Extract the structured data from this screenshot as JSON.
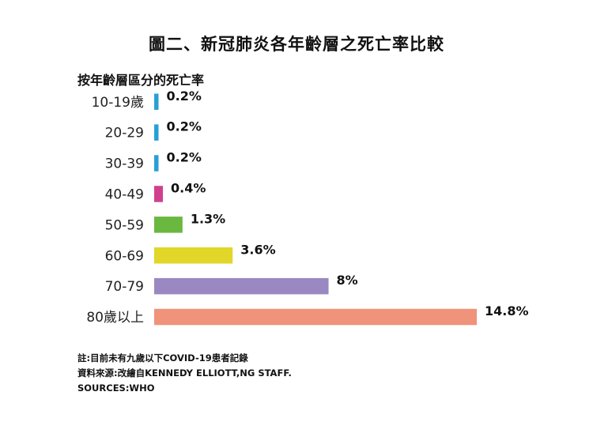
{
  "chart_data": {
    "type": "bar",
    "orientation": "horizontal",
    "title": "圖二、新冠肺炎各年齡層之死亡率比較",
    "subtitle": "按年齡層區分的死亡率",
    "categories": [
      "10-19歲",
      "20-29",
      "30-39",
      "40-49",
      "50-59",
      "60-69",
      "70-79",
      "80歲以上"
    ],
    "values": [
      0.2,
      0.2,
      0.2,
      0.4,
      1.3,
      3.6,
      8,
      14.8
    ],
    "value_labels": [
      "0.2%",
      "0.2%",
      "0.2%",
      "0.4%",
      "1.3%",
      "3.6%",
      "8%",
      "14.8%"
    ],
    "colors": [
      "#2a9fd6",
      "#2a9fd6",
      "#2a9fd6",
      "#d0408f",
      "#6ab840",
      "#e2d628",
      "#9a88c2",
      "#ef937b"
    ],
    "unit": "%",
    "xlim": [
      0,
      14.8
    ],
    "grid": false,
    "legend": "none"
  },
  "notes": [
    "註:目前未有九歲以下COVID-19患者記錄",
    "資料來源:改繪自KENNEDY ELLIOTT,NG STAFF.",
    "SOURCES:WHO"
  ]
}
